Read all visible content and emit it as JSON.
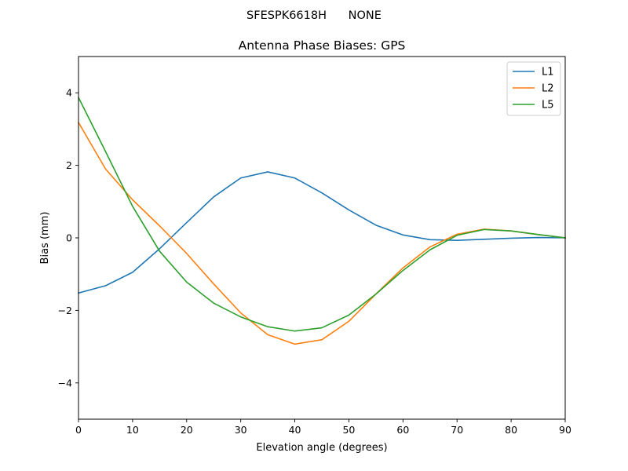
{
  "figure": {
    "suptitle": "SFESPK6618H      NONE"
  },
  "chart_data": {
    "type": "line",
    "title": "Antenna Phase Biases: GPS",
    "xlabel": "Elevation angle (degrees)",
    "ylabel": "Bias (mm)",
    "xlim": [
      0,
      90
    ],
    "ylim": [
      -5,
      5
    ],
    "xticks": [
      0,
      10,
      20,
      30,
      40,
      50,
      60,
      70,
      80,
      90
    ],
    "yticks": [
      -4,
      -2,
      0,
      2,
      4
    ],
    "ytick_labels": [
      "−4",
      "−2",
      "0",
      "2",
      "4"
    ],
    "grid": false,
    "legend_position": "top-right",
    "x": [
      0,
      5,
      10,
      15,
      20,
      25,
      30,
      35,
      40,
      45,
      50,
      55,
      60,
      65,
      70,
      75,
      80,
      85,
      90
    ],
    "series": [
      {
        "name": "L1",
        "color": "#1f77b4",
        "values": [
          -1.52,
          -1.32,
          -0.95,
          -0.3,
          0.42,
          1.13,
          1.65,
          1.82,
          1.65,
          1.24,
          0.77,
          0.35,
          0.08,
          -0.05,
          -0.07,
          -0.04,
          -0.01,
          0.01,
          0.0
        ]
      },
      {
        "name": "L2",
        "color": "#ff7f0e",
        "values": [
          3.18,
          1.9,
          1.05,
          0.33,
          -0.43,
          -1.27,
          -2.07,
          -2.67,
          -2.93,
          -2.81,
          -2.3,
          -1.55,
          -0.83,
          -0.25,
          0.1,
          0.24,
          0.19,
          0.09,
          0.0
        ]
      },
      {
        "name": "L5",
        "color": "#2ca02c",
        "values": [
          3.87,
          2.38,
          0.87,
          -0.37,
          -1.22,
          -1.8,
          -2.18,
          -2.45,
          -2.57,
          -2.48,
          -2.13,
          -1.55,
          -0.9,
          -0.33,
          0.07,
          0.23,
          0.19,
          0.09,
          0.0
        ]
      }
    ]
  }
}
